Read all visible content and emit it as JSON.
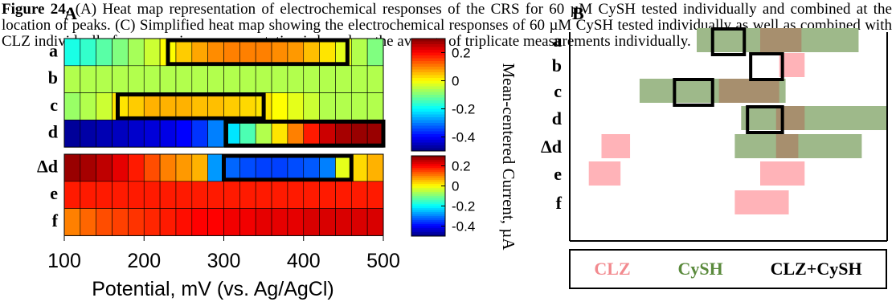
{
  "caption": {
    "fig_label": "Figure 24.",
    "text": "(A) Heat map representation of electrochemical responses of the CRS for 60 µM CySH tested individually and combined at the location of peaks. (C) Simplified heat map showing the electrochemical responses of 60 µM CySH tested individually as well as combined with CLZ individually for comparison; representation is based on the average of triplicate measurements individually."
  },
  "panel_labels": {
    "A": "A",
    "B": "B"
  },
  "colors": {
    "clz": "#ffb3b8",
    "cysh": "#9eb98a",
    "overlap": "#a78f6e",
    "legend_clz": "#f28a8f",
    "legend_cysh": "#5a8a3c"
  },
  "legend": {
    "clz": "CLZ",
    "cysh": "CySH",
    "combo": "CLZ+CySH"
  },
  "chart_data": [
    {
      "type": "heatmap",
      "panel": "A",
      "xlabel": "Potential, mV (vs. Ag/AgCl)",
      "ylabel": "Mean-centered Current, µA",
      "x_ticks": [
        "100",
        "200",
        "300",
        "400",
        "500"
      ],
      "xlim": [
        100,
        500
      ],
      "colorbar_ticks": [
        "0.2",
        "0",
        "-0.2",
        "-0.4"
      ],
      "colorbar_range": [
        -0.5,
        0.3
      ],
      "groups": [
        {
          "rows": [
            {
              "label": "a",
              "values": [
                -0.18,
                -0.16,
                -0.13,
                -0.1,
                -0.07,
                -0.04,
                0.0,
                0.04,
                0.07,
                0.09,
                0.1,
                0.1,
                0.1,
                0.09,
                0.08,
                0.05,
                0.02,
                -0.02,
                -0.06,
                -0.1
              ],
              "highlight": [
                230,
                455
              ]
            },
            {
              "label": "b",
              "values": [
                -0.06,
                -0.06,
                -0.06,
                -0.06,
                -0.06,
                -0.06,
                -0.06,
                -0.06,
                -0.06,
                -0.06,
                -0.06,
                -0.06,
                -0.06,
                -0.06,
                -0.06,
                -0.06,
                -0.06,
                -0.06,
                -0.06,
                -0.06
              ],
              "highlight": null
            },
            {
              "label": "c",
              "values": [
                -0.08,
                -0.06,
                -0.04,
                0.02,
                0.04,
                0.06,
                0.06,
                0.06,
                0.05,
                0.05,
                0.04,
                0.03,
                0.02,
                0.0,
                -0.02,
                -0.04,
                -0.06,
                -0.06,
                -0.06,
                -0.06
              ],
              "highlight": [
                167,
                350
              ]
            },
            {
              "label": "d",
              "values": [
                -0.48,
                -0.47,
                -0.46,
                -0.45,
                -0.44,
                -0.43,
                -0.42,
                -0.4,
                -0.36,
                -0.3,
                -0.22,
                -0.14,
                -0.06,
                0.02,
                0.1,
                0.18,
                0.24,
                0.27,
                0.28,
                0.28
              ],
              "highlight": [
                303,
                500
              ]
            }
          ]
        },
        {
          "rows": [
            {
              "label": "Δd",
              "values": [
                0.28,
                0.27,
                0.25,
                0.22,
                0.18,
                0.14,
                0.1,
                0.08,
                0.06,
                -0.28,
                -0.32,
                -0.34,
                -0.35,
                -0.35,
                -0.34,
                -0.33,
                -0.3,
                -0.02,
                0.03,
                0.06
              ],
              "highlight": [
                300,
                460
              ]
            },
            {
              "label": "e",
              "values": [
                0.18,
                0.18,
                0.18,
                0.18,
                0.18,
                0.18,
                0.18,
                0.18,
                0.18,
                0.18,
                0.18,
                0.18,
                0.18,
                0.18,
                0.18,
                0.18,
                0.18,
                0.18,
                0.18,
                0.18
              ],
              "highlight": null
            },
            {
              "label": "f",
              "values": [
                0.1,
                0.12,
                0.14,
                0.15,
                0.16,
                0.17,
                0.18,
                0.19,
                0.2,
                0.2,
                0.21,
                0.21,
                0.22,
                0.22,
                0.22,
                0.23,
                0.23,
                0.23,
                0.23,
                0.23
              ],
              "highlight": null
            }
          ]
        }
      ]
    },
    {
      "type": "table",
      "panel": "B",
      "row_labels": [
        "a",
        "b",
        "c",
        "d",
        "Δd",
        "e",
        "f"
      ],
      "bars": [
        {
          "row": 0,
          "kind": "cysh",
          "x0": 0.4,
          "x1": 0.91
        },
        {
          "row": 0,
          "kind": "overlap",
          "x0": 0.6,
          "x1": 0.73
        },
        {
          "row": 1,
          "kind": "clz",
          "x0": 0.66,
          "x1": 0.74
        },
        {
          "row": 2,
          "kind": "cysh",
          "x0": 0.22,
          "x1": 0.68
        },
        {
          "row": 2,
          "kind": "overlap",
          "x0": 0.47,
          "x1": 0.66
        },
        {
          "row": 3,
          "kind": "cysh",
          "x0": 0.54,
          "x1": 1.0
        },
        {
          "row": 3,
          "kind": "overlap",
          "x0": 0.65,
          "x1": 0.74
        },
        {
          "row": 4,
          "kind": "clz",
          "x0": 0.1,
          "x1": 0.19
        },
        {
          "row": 4,
          "kind": "cysh",
          "x0": 0.52,
          "x1": 0.92
        },
        {
          "row": 4,
          "kind": "overlap",
          "x0": 0.65,
          "x1": 0.72
        },
        {
          "row": 5,
          "kind": "clz",
          "x0": 0.06,
          "x1": 0.16
        },
        {
          "row": 5,
          "kind": "clz",
          "x0": 0.6,
          "x1": 0.74
        },
        {
          "row": 6,
          "kind": "clz",
          "x0": 0.52,
          "x1": 0.69
        }
      ],
      "boxes": [
        {
          "row": 0,
          "x0": 0.45,
          "x1": 0.55
        },
        {
          "row": 1,
          "x0": 0.57,
          "x1": 0.67
        },
        {
          "row": 2,
          "x0": 0.33,
          "x1": 0.45
        },
        {
          "row": 3,
          "x0": 0.56,
          "x1": 0.67
        }
      ]
    }
  ]
}
